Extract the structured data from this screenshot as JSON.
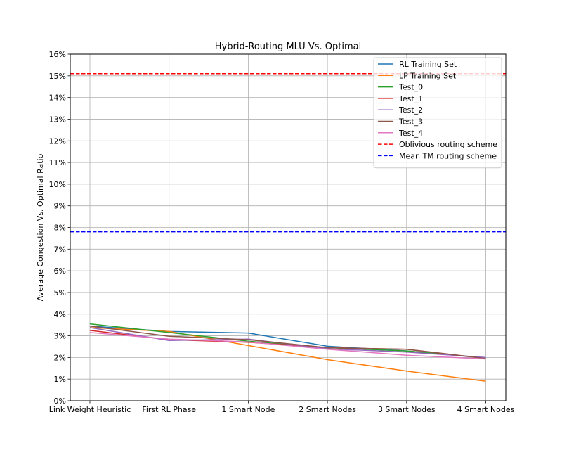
{
  "chart_data": {
    "type": "line",
    "title": "Hybrid-Routing MLU Vs. Optimal",
    "xlabel": "",
    "ylabel": "Average Congestion Vs. Optimal Ratio",
    "categories": [
      "Link Weight Heuristic",
      "First RL Phase",
      "1 Smart Node",
      "2 Smart Nodes",
      "3 Smart Nodes",
      "4 Smart Nodes"
    ],
    "ylim": [
      0,
      16
    ],
    "yticks": [
      0,
      1,
      2,
      3,
      4,
      5,
      6,
      7,
      8,
      9,
      10,
      11,
      12,
      13,
      14,
      15,
      16
    ],
    "ytick_labels": [
      "0%",
      "1%",
      "2%",
      "3%",
      "4%",
      "5%",
      "6%",
      "7%",
      "8%",
      "9%",
      "10%",
      "11%",
      "12%",
      "13%",
      "14%",
      "15%",
      "16%"
    ],
    "grid": true,
    "legend_position": "top-right",
    "series": [
      {
        "name": "RL Training Set",
        "color": "#1f77b4",
        "style": "solid",
        "values": [
          3.45,
          3.2,
          3.13,
          2.52,
          2.3,
          1.97
        ]
      },
      {
        "name": "LP Training Set",
        "color": "#ff7f0e",
        "style": "solid",
        "values": [
          3.38,
          3.2,
          2.55,
          1.9,
          1.37,
          0.9
        ]
      },
      {
        "name": "Test_0",
        "color": "#2ca02c",
        "style": "solid",
        "values": [
          3.55,
          3.15,
          2.75,
          2.45,
          2.3,
          1.98
        ]
      },
      {
        "name": "Test_1",
        "color": "#d62728",
        "style": "solid",
        "values": [
          3.25,
          2.82,
          2.7,
          2.45,
          2.38,
          1.95
        ]
      },
      {
        "name": "Test_2",
        "color": "#9467bd",
        "style": "solid",
        "values": [
          3.38,
          2.78,
          2.85,
          2.4,
          2.25,
          2.0
        ]
      },
      {
        "name": "Test_3",
        "color": "#8c564b",
        "style": "solid",
        "values": [
          3.45,
          2.98,
          2.82,
          2.45,
          2.38,
          1.95
        ]
      },
      {
        "name": "Test_4",
        "color": "#e377c2",
        "style": "solid",
        "values": [
          3.15,
          2.85,
          2.72,
          2.38,
          2.1,
          1.93
        ]
      },
      {
        "name": "Oblivious routing scheme",
        "color": "#ff0000",
        "style": "dashed",
        "hline": 15.1
      },
      {
        "name": "Mean TM routing scheme",
        "color": "#0000ff",
        "style": "dashed",
        "hline": 7.8
      }
    ]
  }
}
